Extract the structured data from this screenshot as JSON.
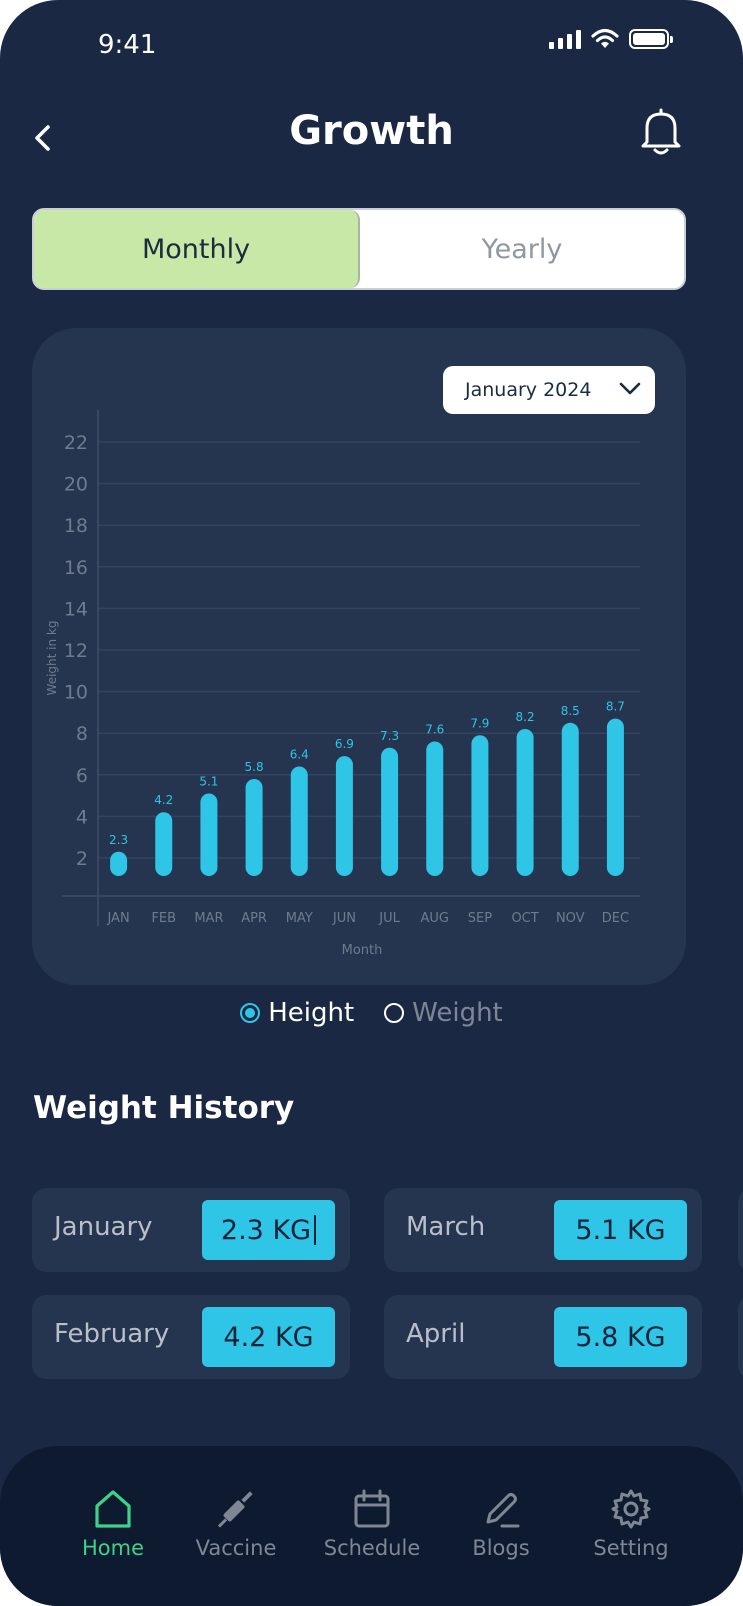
{
  "status_bar": {
    "time": "9:41"
  },
  "header": {
    "title": "Growth"
  },
  "segment": {
    "options": [
      "Monthly",
      "Yearly"
    ],
    "selected": "Monthly"
  },
  "period_select": {
    "value": "January 2024"
  },
  "chart_data": {
    "type": "bar",
    "categories": [
      "JAN",
      "FEB",
      "MAR",
      "APR",
      "MAY",
      "JUN",
      "JUL",
      "AUG",
      "SEP",
      "OCT",
      "NOV",
      "DEC"
    ],
    "values": [
      2.3,
      4.2,
      5.1,
      5.8,
      6.4,
      6.9,
      7.3,
      7.6,
      7.9,
      8.2,
      8.5,
      8.7
    ],
    "data_labels": [
      "2.3",
      "4.2",
      "5.1",
      "5.8",
      "6.4",
      "6.9",
      "7.3",
      "7.6",
      "7.9",
      "8.2",
      "8.5",
      "8.7"
    ],
    "yticks": [
      2,
      4,
      6,
      8,
      10,
      12,
      14,
      16,
      18,
      20,
      22
    ],
    "ylim": [
      0,
      22
    ],
    "xlabel": "Month",
    "ylabel": "Weight in kg",
    "grid": true,
    "bar_color": "#2ec5e6"
  },
  "legend": {
    "items": [
      {
        "label": "Height",
        "selected": true
      },
      {
        "label": "Weight",
        "selected": false
      }
    ]
  },
  "history": {
    "title": "Weight History",
    "items": [
      {
        "month": "January",
        "value": "2.3 KG"
      },
      {
        "month": "March",
        "value": "5.1 KG"
      },
      {
        "month": "February",
        "value": "4.2 KG"
      },
      {
        "month": "April",
        "value": "5.8 KG"
      }
    ]
  },
  "nav": {
    "items": [
      {
        "label": "Home",
        "icon": "home-icon",
        "active": true
      },
      {
        "label": "Vaccine",
        "icon": "syringe-icon",
        "active": false
      },
      {
        "label": "Schedule",
        "icon": "calendar-icon",
        "active": false
      },
      {
        "label": "Blogs",
        "icon": "pen-icon",
        "active": false
      },
      {
        "label": "Setting",
        "icon": "gear-icon",
        "active": false
      }
    ]
  },
  "colors": {
    "background": "#1b2844",
    "card": "#25344f",
    "accent": "#2ec5e6",
    "selected_tab": "#c7e8a6",
    "nav_active": "#3fd187"
  }
}
